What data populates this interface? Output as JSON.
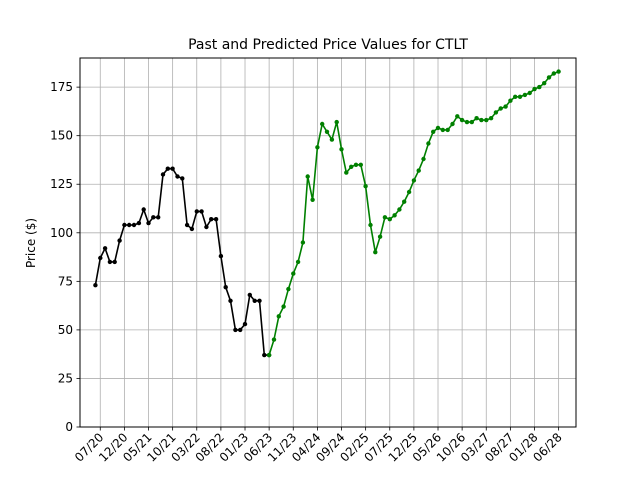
{
  "chart_data": {
    "type": "line",
    "title": "Past and Predicted Price Values for CTLT",
    "xlabel": "",
    "ylabel": "Price ($)",
    "ylim": [
      0,
      190
    ],
    "yticks": [
      0,
      25,
      50,
      75,
      100,
      125,
      150,
      175
    ],
    "xticks": [
      "07/20",
      "12/20",
      "05/21",
      "10/21",
      "03/22",
      "08/22",
      "01/23",
      "06/23",
      "11/23",
      "04/24",
      "09/24",
      "02/25",
      "07/25",
      "12/25",
      "05/26",
      "10/26",
      "03/27",
      "08/27",
      "01/28",
      "06/28"
    ],
    "grid": true,
    "x_unit": "month",
    "x_start": "2020-06",
    "series": [
      {
        "color": "#000000",
        "values": [
          73,
          87,
          92,
          85,
          85,
          96,
          104,
          104,
          104,
          105,
          112,
          105,
          108,
          108,
          130,
          133,
          133,
          129,
          128,
          104,
          102,
          111,
          111,
          103,
          107,
          107,
          88,
          72,
          65,
          50,
          50,
          53,
          68,
          65,
          65,
          37,
          37
        ]
      },
      {
        "color": "#008000",
        "values": [
          37,
          45,
          57,
          62,
          71,
          79,
          85,
          95,
          129,
          117,
          144,
          156,
          152,
          148,
          157,
          143,
          131,
          134,
          135,
          135,
          124,
          104,
          90,
          98,
          108,
          107,
          109,
          112,
          116,
          121,
          127,
          132,
          138,
          146,
          152,
          154,
          153,
          153,
          156,
          160,
          158,
          157,
          157,
          159,
          158,
          158,
          159,
          162,
          164,
          165,
          168,
          170,
          170,
          171,
          172,
          174,
          175,
          177,
          180,
          182,
          183
        ]
      }
    ]
  }
}
